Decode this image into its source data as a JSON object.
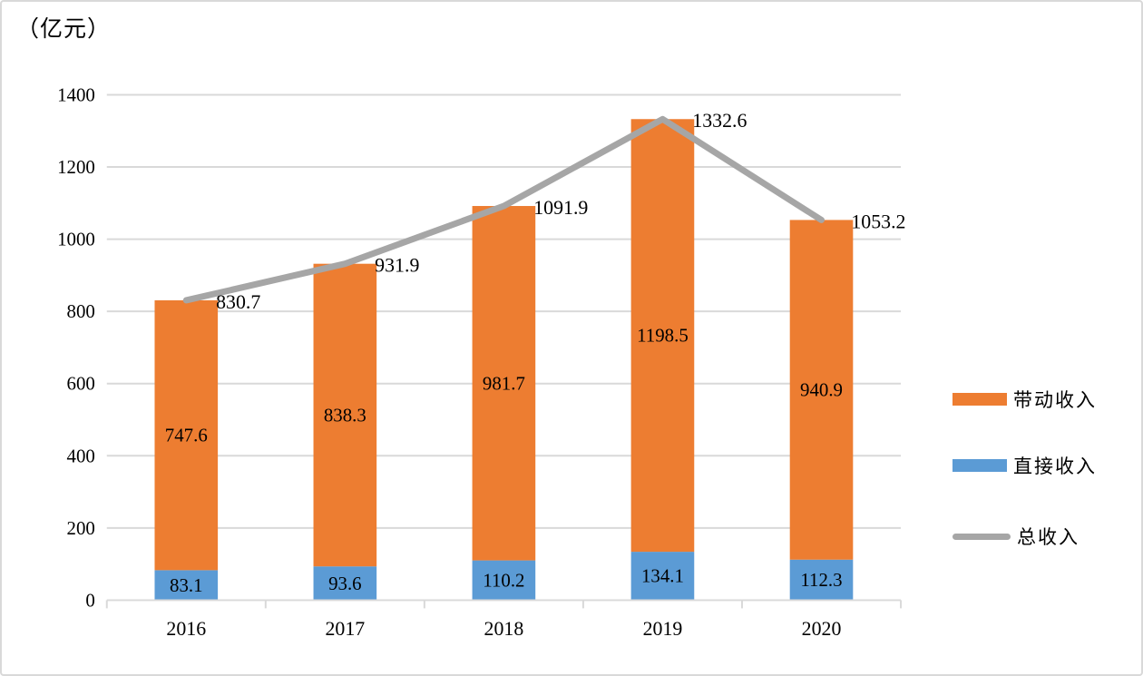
{
  "chart": {
    "unit_label": "（亿元）",
    "colors": {
      "indirect_income": "#ED7D31",
      "direct_income": "#5B9BD5",
      "total_line": "#A6A6A6",
      "gridline": "#D9D9D9",
      "axis": "#D9D9D9",
      "text": "#000000",
      "border": "#D9D9D9",
      "background": "#FFFFFF"
    }
  },
  "chart_data": {
    "type": "bar",
    "subtype": "stacked-bars-with-line-overlay",
    "title": "",
    "ylabel": "（亿元）",
    "xlabel": "",
    "categories": [
      "2016",
      "2017",
      "2018",
      "2019",
      "2020"
    ],
    "series": [
      {
        "name": "直接收入",
        "type": "bar",
        "stack_order": 0,
        "color": "#5B9BD5",
        "values": [
          83.1,
          93.6,
          110.2,
          134.1,
          112.3
        ]
      },
      {
        "name": "带动收入",
        "type": "bar",
        "stack_order": 1,
        "color": "#ED7D31",
        "values": [
          747.6,
          838.3,
          981.7,
          1198.5,
          940.9
        ]
      },
      {
        "name": "总收入",
        "type": "line",
        "color": "#A6A6A6",
        "values": [
          830.7,
          931.9,
          1091.9,
          1332.6,
          1053.2
        ]
      }
    ],
    "ylim": [
      0,
      1400
    ],
    "yticks": [
      0,
      200,
      400,
      600,
      800,
      1000,
      1200,
      1400
    ],
    "grid": true,
    "data_labels": true,
    "legend_position": "right",
    "legend": [
      {
        "label": "带动收入",
        "swatch": "rect",
        "color": "#ED7D31"
      },
      {
        "label": "直接收入",
        "swatch": "rect",
        "color": "#5B9BD5"
      },
      {
        "label": "总收入",
        "swatch": "line",
        "color": "#A6A6A6"
      }
    ]
  }
}
